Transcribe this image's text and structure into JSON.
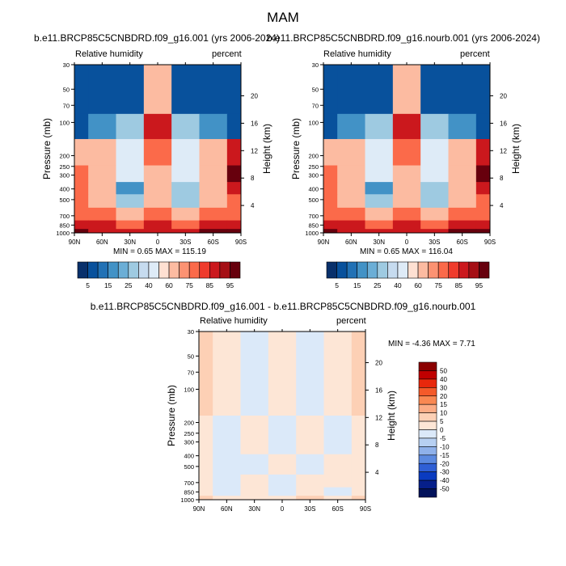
{
  "main_title": "MAM",
  "panels": [
    {
      "title": "b.e11.BRCP85C5CNBDRD.f09_g16.001 (yrs 2006-2024)",
      "left_label": "Relative humidity",
      "right_label": "percent",
      "stats": "MIN =   0.65   MAX = 115.19"
    },
    {
      "title": "b.e11.BRCP85C5CNBDRD.f09_g16.nourb.001 (yrs 2006-2024)",
      "left_label": "Relative humidity",
      "right_label": "percent",
      "stats": "MIN =   0.65   MAX = 116.04"
    },
    {
      "title": "b.e11.BRCP85C5CNBDRD.f09_g16.001 - b.e11.BRCP85C5CNBDRD.f09_g16.nourb.001",
      "left_label": "Relative humidity",
      "right_label": "percent",
      "stats": "MIN =  -4.36   MAX =   7.71"
    }
  ],
  "chart_data": {
    "type": "heatmap",
    "xlabel": "",
    "ylabel": "Pressure (mb)",
    "y2label": "Height (km)",
    "x_ticks": [
      "90N",
      "60N",
      "30N",
      "0",
      "30S",
      "60S",
      "90S"
    ],
    "x_ticks_values": [
      90,
      60,
      30,
      0,
      -30,
      -60,
      -90
    ],
    "y_ticks": [
      "30",
      "50",
      "70",
      "100",
      "200",
      "250",
      "300",
      "400",
      "500",
      "700",
      "850",
      "1000"
    ],
    "y_ticks_values": [
      30,
      50,
      70,
      100,
      200,
      250,
      300,
      400,
      500,
      700,
      850,
      1000
    ],
    "y_scale": "log",
    "ylim": [
      1000,
      30
    ],
    "height_ticks": [
      "20",
      "16",
      "12",
      "8",
      "4"
    ],
    "height_ticks_values": [
      20,
      16,
      12,
      8,
      4
    ],
    "colorbar_rh": {
      "labels": [
        "5",
        "15",
        "25",
        "40",
        "60",
        "75",
        "85",
        "95"
      ],
      "colors": [
        "#08306b",
        "#08519c",
        "#2171b5",
        "#4292c6",
        "#6baed6",
        "#9ecae1",
        "#c6dbef",
        "#deebf7",
        "#fee0d2",
        "#fcbba1",
        "#fc9272",
        "#fb6a4a",
        "#ef3b2c",
        "#cb181d",
        "#a50f15",
        "#67000d"
      ]
    },
    "colorbar_diff": {
      "labels": [
        "50",
        "40",
        "30",
        "20",
        "15",
        "10",
        "5",
        "0",
        "-5",
        "-10",
        "-15",
        "-20",
        "-30",
        "-40",
        "-50"
      ],
      "colors": [
        "#8b0000",
        "#c00000",
        "#e8280c",
        "#f45a2a",
        "#f98852",
        "#fcac85",
        "#fdd0b5",
        "#fde6d6",
        "#dbe9f9",
        "#b7d0f2",
        "#8fb1ea",
        "#5c8ae0",
        "#2f5fd5",
        "#0a3bc0",
        "#061f8a",
        "#02125a"
      ]
    },
    "panel_1_rh": {
      "x": [
        90,
        60,
        30,
        0,
        -30,
        -60,
        -90
      ],
      "pressure_levels": [
        70,
        100,
        200,
        300,
        400,
        500,
        700,
        850,
        1000
      ],
      "values": [
        [
          5,
          5,
          5,
          60,
          5,
          5,
          5
        ],
        [
          5,
          15,
          25,
          85,
          25,
          15,
          5
        ],
        [
          60,
          60,
          40,
          75,
          40,
          60,
          85
        ],
        [
          75,
          60,
          40,
          60,
          40,
          60,
          95
        ],
        [
          75,
          60,
          15,
          60,
          25,
          60,
          85
        ],
        [
          75,
          60,
          25,
          60,
          25,
          60,
          75
        ],
        [
          75,
          75,
          60,
          75,
          60,
          75,
          75
        ],
        [
          85,
          85,
          75,
          85,
          75,
          85,
          85
        ],
        [
          95,
          85,
          85,
          85,
          85,
          95,
          95
        ]
      ]
    },
    "panel_2_rh": {
      "x": [
        90,
        60,
        30,
        0,
        -30,
        -60,
        -90
      ],
      "pressure_levels": [
        70,
        100,
        200,
        300,
        400,
        500,
        700,
        850,
        1000
      ],
      "values": [
        [
          5,
          5,
          5,
          60,
          5,
          5,
          5
        ],
        [
          5,
          15,
          25,
          85,
          25,
          15,
          5
        ],
        [
          60,
          60,
          40,
          75,
          40,
          60,
          85
        ],
        [
          75,
          60,
          40,
          60,
          40,
          60,
          95
        ],
        [
          75,
          60,
          15,
          60,
          25,
          60,
          85
        ],
        [
          75,
          60,
          25,
          60,
          25,
          60,
          75
        ],
        [
          75,
          75,
          60,
          75,
          60,
          75,
          75
        ],
        [
          85,
          85,
          75,
          85,
          75,
          85,
          85
        ],
        [
          95,
          85,
          85,
          85,
          85,
          95,
          95
        ]
      ]
    },
    "panel_3_diff": {
      "x": [
        90,
        60,
        30,
        0,
        -30,
        -60,
        -90
      ],
      "pressure_levels": [
        100,
        300,
        500,
        700,
        850,
        1000
      ],
      "values": [
        [
          5,
          0,
          -5,
          0,
          -5,
          0,
          5
        ],
        [
          0,
          -5,
          0,
          -5,
          0,
          -5,
          0
        ],
        [
          0,
          -5,
          -5,
          0,
          -5,
          0,
          0
        ],
        [
          0,
          -5,
          0,
          -5,
          0,
          0,
          0
        ],
        [
          0,
          -5,
          0,
          -5,
          0,
          -5,
          0
        ],
        [
          5,
          0,
          0,
          0,
          5,
          0,
          5
        ]
      ]
    }
  }
}
